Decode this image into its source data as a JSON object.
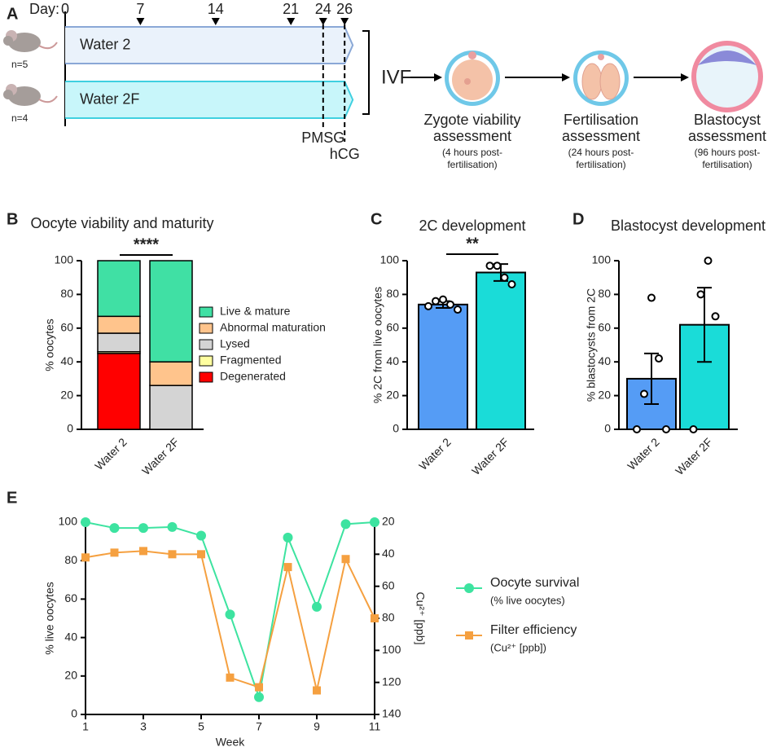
{
  "diagram": {
    "label": "A",
    "day_label": "Day:",
    "days": [
      0,
      7,
      14,
      21,
      24,
      26
    ],
    "groups": [
      {
        "name": "Water 2",
        "n": "n=5"
      },
      {
        "name": "Water 2F",
        "n": "n=4"
      }
    ],
    "markers": [
      "PMSG",
      "hCG"
    ],
    "ivf": "IVF",
    "stages": [
      {
        "title": [
          "Zygote viability",
          "assessment"
        ],
        "note": [
          "(4 hours post-",
          "fertilisation)"
        ]
      },
      {
        "title": [
          "Fertilisation",
          "assessment"
        ],
        "note": [
          "(24 hours post-",
          "fertilisation)"
        ]
      },
      {
        "title": [
          "Blastocyst",
          "assessment"
        ],
        "note": [
          "(96 hours post-",
          "fertilisation)"
        ]
      }
    ]
  },
  "chart_data": [
    {
      "label": "B",
      "type": "stacked_bar",
      "title": "Oocyte viability and maturity",
      "ylabel": "% oocytes",
      "categories": [
        "Water 2",
        "Water 2F"
      ],
      "series": [
        {
          "name": "Degenerated",
          "color": "#ff0000",
          "values": [
            45,
            0
          ]
        },
        {
          "name": "Fragmented",
          "color": "#ffffa0",
          "values": [
            1,
            0
          ]
        },
        {
          "name": "Lysed",
          "color": "#d4d4d4",
          "values": [
            11,
            26
          ]
        },
        {
          "name": "Abnormal maturation",
          "color": "#ffc48c",
          "values": [
            10,
            14
          ]
        },
        {
          "name": "Live & mature",
          "color": "#40e0a4",
          "values": [
            33,
            60
          ]
        }
      ],
      "ylim": [
        0,
        100
      ],
      "yticks": [
        0,
        20,
        40,
        60,
        80,
        100
      ],
      "annotation": "****"
    },
    {
      "label": "C",
      "type": "bar_points",
      "title": "2C development",
      "ylabel": "% 2C from live oocytes",
      "categories": [
        "Water 2",
        "Water 2F"
      ],
      "values": [
        74,
        93
      ],
      "errors": [
        2,
        5
      ],
      "colors": [
        "#559cf5",
        "#1adcd8"
      ],
      "points": [
        [
          73,
          76,
          77,
          74,
          71
        ],
        [
          97,
          97,
          90,
          86
        ]
      ],
      "ylim": [
        0,
        100
      ],
      "yticks": [
        0,
        20,
        40,
        60,
        80,
        100
      ],
      "annotation": "**"
    },
    {
      "label": "D",
      "type": "bar_points",
      "title": "Blastocyst development",
      "ylabel": "% blastocysts from 2C",
      "categories": [
        "Water 2",
        "Water 2F"
      ],
      "values": [
        30,
        62
      ],
      "errors": [
        15,
        22
      ],
      "colors": [
        "#559cf5",
        "#1adcd8"
      ],
      "points": [
        [
          0,
          21,
          78,
          42,
          0
        ],
        [
          0,
          80,
          100,
          67
        ]
      ],
      "ylim": [
        0,
        100
      ],
      "yticks": [
        0,
        20,
        40,
        60,
        80,
        100
      ]
    },
    {
      "label": "E",
      "type": "line",
      "xlabel": "Week",
      "ylabel": "% live oocytes",
      "y2label": "Cu²⁺ [ppb]",
      "x": [
        1,
        2,
        3,
        4,
        5,
        6,
        7,
        8,
        9,
        10,
        11
      ],
      "series": [
        {
          "name": "Oocyte survival",
          "subtitle": "(% live oocytes)",
          "color": "#3de3a0",
          "values": [
            100,
            97,
            97,
            97.5,
            93,
            52,
            9,
            92,
            56,
            99,
            100
          ]
        },
        {
          "name": "Filter efficiency",
          "subtitle": "(Cu²⁺ [ppb])",
          "color": "#f5a040",
          "axis": "y2",
          "values": [
            42,
            39,
            38,
            40,
            40,
            117,
            123,
            48,
            125,
            43,
            80
          ]
        }
      ],
      "xlim": [
        1,
        11
      ],
      "xticks": [
        1,
        3,
        5,
        7,
        9,
        11
      ],
      "ylim": [
        0,
        100
      ],
      "yticks": [
        0,
        20,
        40,
        60,
        80,
        100
      ],
      "y2lim": [
        140,
        20
      ],
      "y2ticks": [
        20,
        40,
        60,
        80,
        100,
        120,
        140
      ]
    }
  ]
}
